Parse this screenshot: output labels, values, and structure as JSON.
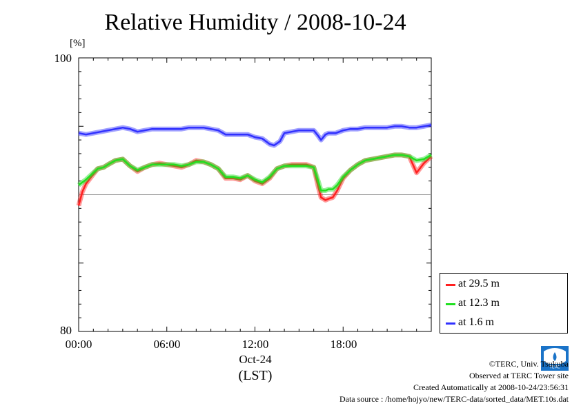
{
  "chart_data": {
    "type": "line",
    "title": "Relative Humidity / 2008-10-24",
    "ylabel": "[%]",
    "ylim": [
      80,
      100
    ],
    "xlim": [
      0,
      24
    ],
    "yticks": [
      "80",
      "100"
    ],
    "xticks": [
      {
        "value": 0,
        "label": "00:00"
      },
      {
        "value": 6,
        "label": "06:00"
      },
      {
        "value": 12,
        "label": "12:00"
      },
      {
        "value": 18,
        "label": "18:00"
      }
    ],
    "x_date_label": "Oct-24",
    "x_unit_label": "(LST)",
    "reference_line": 90,
    "grid": false,
    "legend_position": "bottom-right",
    "series": [
      {
        "name": "at 29.5 m",
        "color": "#ff2020",
        "x": [
          0,
          0.25,
          0.5,
          1,
          1.3,
          1.7,
          2,
          2.5,
          3,
          3.5,
          4,
          4.5,
          5,
          5.5,
          6,
          6.5,
          7,
          7.5,
          8,
          8.5,
          9,
          9.5,
          10,
          10.5,
          11,
          11.5,
          12,
          12.5,
          13,
          13.5,
          14,
          14.5,
          15,
          15.5,
          16,
          16.3,
          16.5,
          16.8,
          17,
          17.3,
          17.6,
          18,
          18.5,
          19,
          19.5,
          20,
          20.5,
          21,
          21.5,
          22,
          22.5,
          23,
          23.5,
          24
        ],
        "values": [
          89.2,
          90.2,
          90.8,
          91.5,
          91.9,
          92.0,
          92.2,
          92.5,
          92.6,
          92.1,
          91.7,
          92.0,
          92.2,
          92.3,
          92.2,
          92.1,
          92.0,
          92.2,
          92.5,
          92.4,
          92.2,
          91.9,
          91.2,
          91.2,
          91.1,
          91.4,
          91.0,
          90.8,
          91.2,
          91.9,
          92.1,
          92.2,
          92.2,
          92.2,
          92.0,
          90.6,
          89.8,
          89.6,
          89.7,
          89.8,
          90.3,
          91.2,
          91.8,
          92.2,
          92.5,
          92.6,
          92.7,
          92.8,
          92.9,
          92.9,
          92.8,
          91.6,
          92.3,
          92.8
        ]
      },
      {
        "name": "at 12.3 m",
        "color": "#20e020",
        "x": [
          0,
          0.25,
          0.5,
          1,
          1.3,
          1.7,
          2,
          2.5,
          3,
          3.5,
          4,
          4.5,
          5,
          5.5,
          6,
          6.5,
          7,
          7.5,
          8,
          8.5,
          9,
          9.5,
          10,
          10.5,
          11,
          11.5,
          12,
          12.5,
          13,
          13.5,
          14,
          14.5,
          15,
          15.5,
          16,
          16.3,
          16.5,
          16.8,
          17,
          17.3,
          17.6,
          18,
          18.5,
          19,
          19.5,
          20,
          20.5,
          21,
          21.5,
          22,
          22.5,
          23,
          23.5,
          24
        ],
        "values": [
          90.7,
          90.9,
          91.1,
          91.6,
          91.9,
          92.0,
          92.2,
          92.5,
          92.6,
          92.1,
          91.8,
          92.0,
          92.2,
          92.2,
          92.2,
          92.2,
          92.1,
          92.2,
          92.4,
          92.4,
          92.2,
          91.9,
          91.3,
          91.3,
          91.2,
          91.4,
          91.1,
          90.9,
          91.3,
          91.9,
          92.1,
          92.1,
          92.1,
          92.1,
          92.0,
          91.0,
          90.3,
          90.3,
          90.4,
          90.4,
          90.7,
          91.3,
          91.8,
          92.2,
          92.5,
          92.6,
          92.7,
          92.8,
          92.9,
          92.9,
          92.8,
          92.5,
          92.6,
          92.9
        ]
      },
      {
        "name": "at 1.6 m",
        "color": "#3030ff",
        "x": [
          0,
          0.5,
          1,
          1.5,
          2,
          2.5,
          3,
          3.5,
          4,
          4.5,
          5,
          5.5,
          6,
          6.5,
          7,
          7.5,
          8,
          8.5,
          9,
          9.5,
          10,
          10.5,
          11,
          11.5,
          12,
          12.5,
          13,
          13.3,
          13.7,
          14,
          14.5,
          15,
          15.5,
          16,
          16.3,
          16.5,
          16.8,
          17,
          17.5,
          18,
          18.5,
          19,
          19.5,
          20,
          20.5,
          21,
          21.5,
          22,
          22.5,
          23,
          23.5,
          24
        ],
        "values": [
          94.5,
          94.4,
          94.5,
          94.6,
          94.7,
          94.8,
          94.9,
          94.8,
          94.6,
          94.7,
          94.8,
          94.8,
          94.8,
          94.8,
          94.8,
          94.9,
          94.9,
          94.9,
          94.8,
          94.7,
          94.4,
          94.4,
          94.4,
          94.4,
          94.2,
          94.1,
          93.7,
          93.6,
          93.9,
          94.5,
          94.6,
          94.7,
          94.7,
          94.7,
          94.3,
          94.0,
          94.4,
          94.5,
          94.5,
          94.7,
          94.8,
          94.8,
          94.9,
          94.9,
          94.9,
          94.9,
          95.0,
          95.0,
          94.9,
          94.9,
          95.0,
          95.1
        ]
      }
    ]
  },
  "credits": {
    "copyright": "©TERC, Univ. Tsukuba",
    "site": "Observed at TERC Tower site",
    "created": "Created Automatically at 2008-10-24/23:56:31",
    "source": "Data source : /home/hojyo/new/TERC-data/sorted_data/MET.10s.dat"
  },
  "logo_text": "TERC"
}
